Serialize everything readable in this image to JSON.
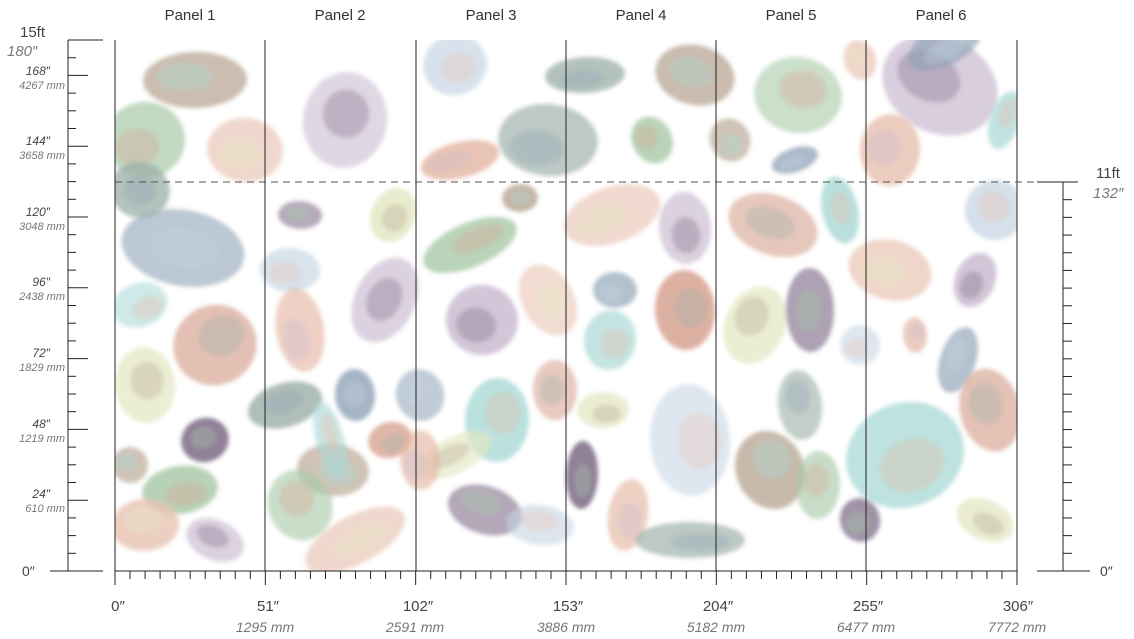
{
  "top_scale": {
    "ft_label": "15ft",
    "in_label": "180″"
  },
  "right_scale": {
    "ft_label": "11ft",
    "in_label": "132″",
    "zero_label": "0″"
  },
  "left_scale": {
    "zero_label": "0″",
    "marks": [
      {
        "in": "168″",
        "mm": "4267 mm"
      },
      {
        "in": "144″",
        "mm": "3658 mm"
      },
      {
        "in": "120″",
        "mm": "3048 mm"
      },
      {
        "in": "96″",
        "mm": "2438 mm"
      },
      {
        "in": "72″",
        "mm": "1829 mm"
      },
      {
        "in": "48″",
        "mm": "1219 mm"
      },
      {
        "in": "24″",
        "mm": "610 mm"
      }
    ]
  },
  "bottom_scale": {
    "marks": [
      {
        "in": "0″",
        "mm": ""
      },
      {
        "in": "51″",
        "mm": "1295 mm"
      },
      {
        "in": "102″",
        "mm": "2591 mm"
      },
      {
        "in": "153″",
        "mm": "3886 mm"
      },
      {
        "in": "204″",
        "mm": "5182 mm"
      },
      {
        "in": "255″",
        "mm": "6477 mm"
      },
      {
        "in": "306″",
        "mm": "7772 mm"
      }
    ]
  },
  "panels": [
    "Panel 1",
    "Panel 2",
    "Panel 3",
    "Panel 4",
    "Panel 5",
    "Panel 6"
  ],
  "colors": {
    "line": "#222222",
    "guide_dash": "#555555",
    "swatches": [
      "#b7a592",
      "#a8c9a8",
      "#e9c4b4",
      "#c9b9cf",
      "#8fa3b6",
      "#a9d9d6",
      "#d6a28f",
      "#e3e7c2",
      "#7d6a86",
      "#c5d4e2",
      "#e5b9a6",
      "#9eb0a8"
    ]
  }
}
